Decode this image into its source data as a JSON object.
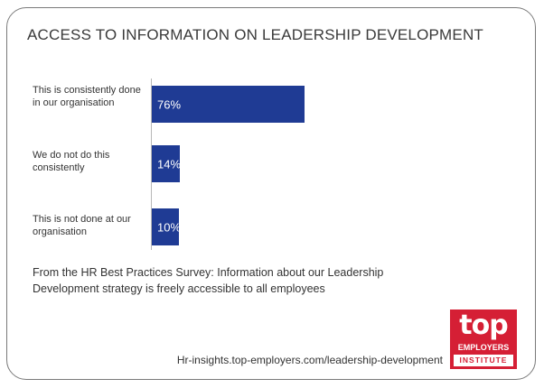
{
  "chart_data": {
    "type": "bar",
    "orientation": "horizontal",
    "title": "ACCESS TO INFORMATION ON LEADERSHIP DEVELOPMENT",
    "categories": [
      "This is consistently done in our organisation",
      "We do not do this consistently",
      "This is not done at our organisation"
    ],
    "values": [
      76,
      14,
      10
    ],
    "data_labels": [
      "76%",
      "14%",
      "10%"
    ],
    "unit": "%",
    "xlim": [
      0,
      100
    ],
    "grid": false,
    "legend": "none",
    "bar_color": "#1f3b94"
  },
  "footnote": "From the HR Best Practices Survey: Information about our Leadership Development strategy is freely accessible to all employees",
  "source_url": "Hr-insights.top-employers.com/leadership-development",
  "logo": {
    "word": "top",
    "line2": "EMPLOYERS",
    "line3": "INSTITUTE",
    "color": "#d51f35"
  },
  "colors": {
    "border": "#7a7a7a",
    "text": "#333333"
  }
}
